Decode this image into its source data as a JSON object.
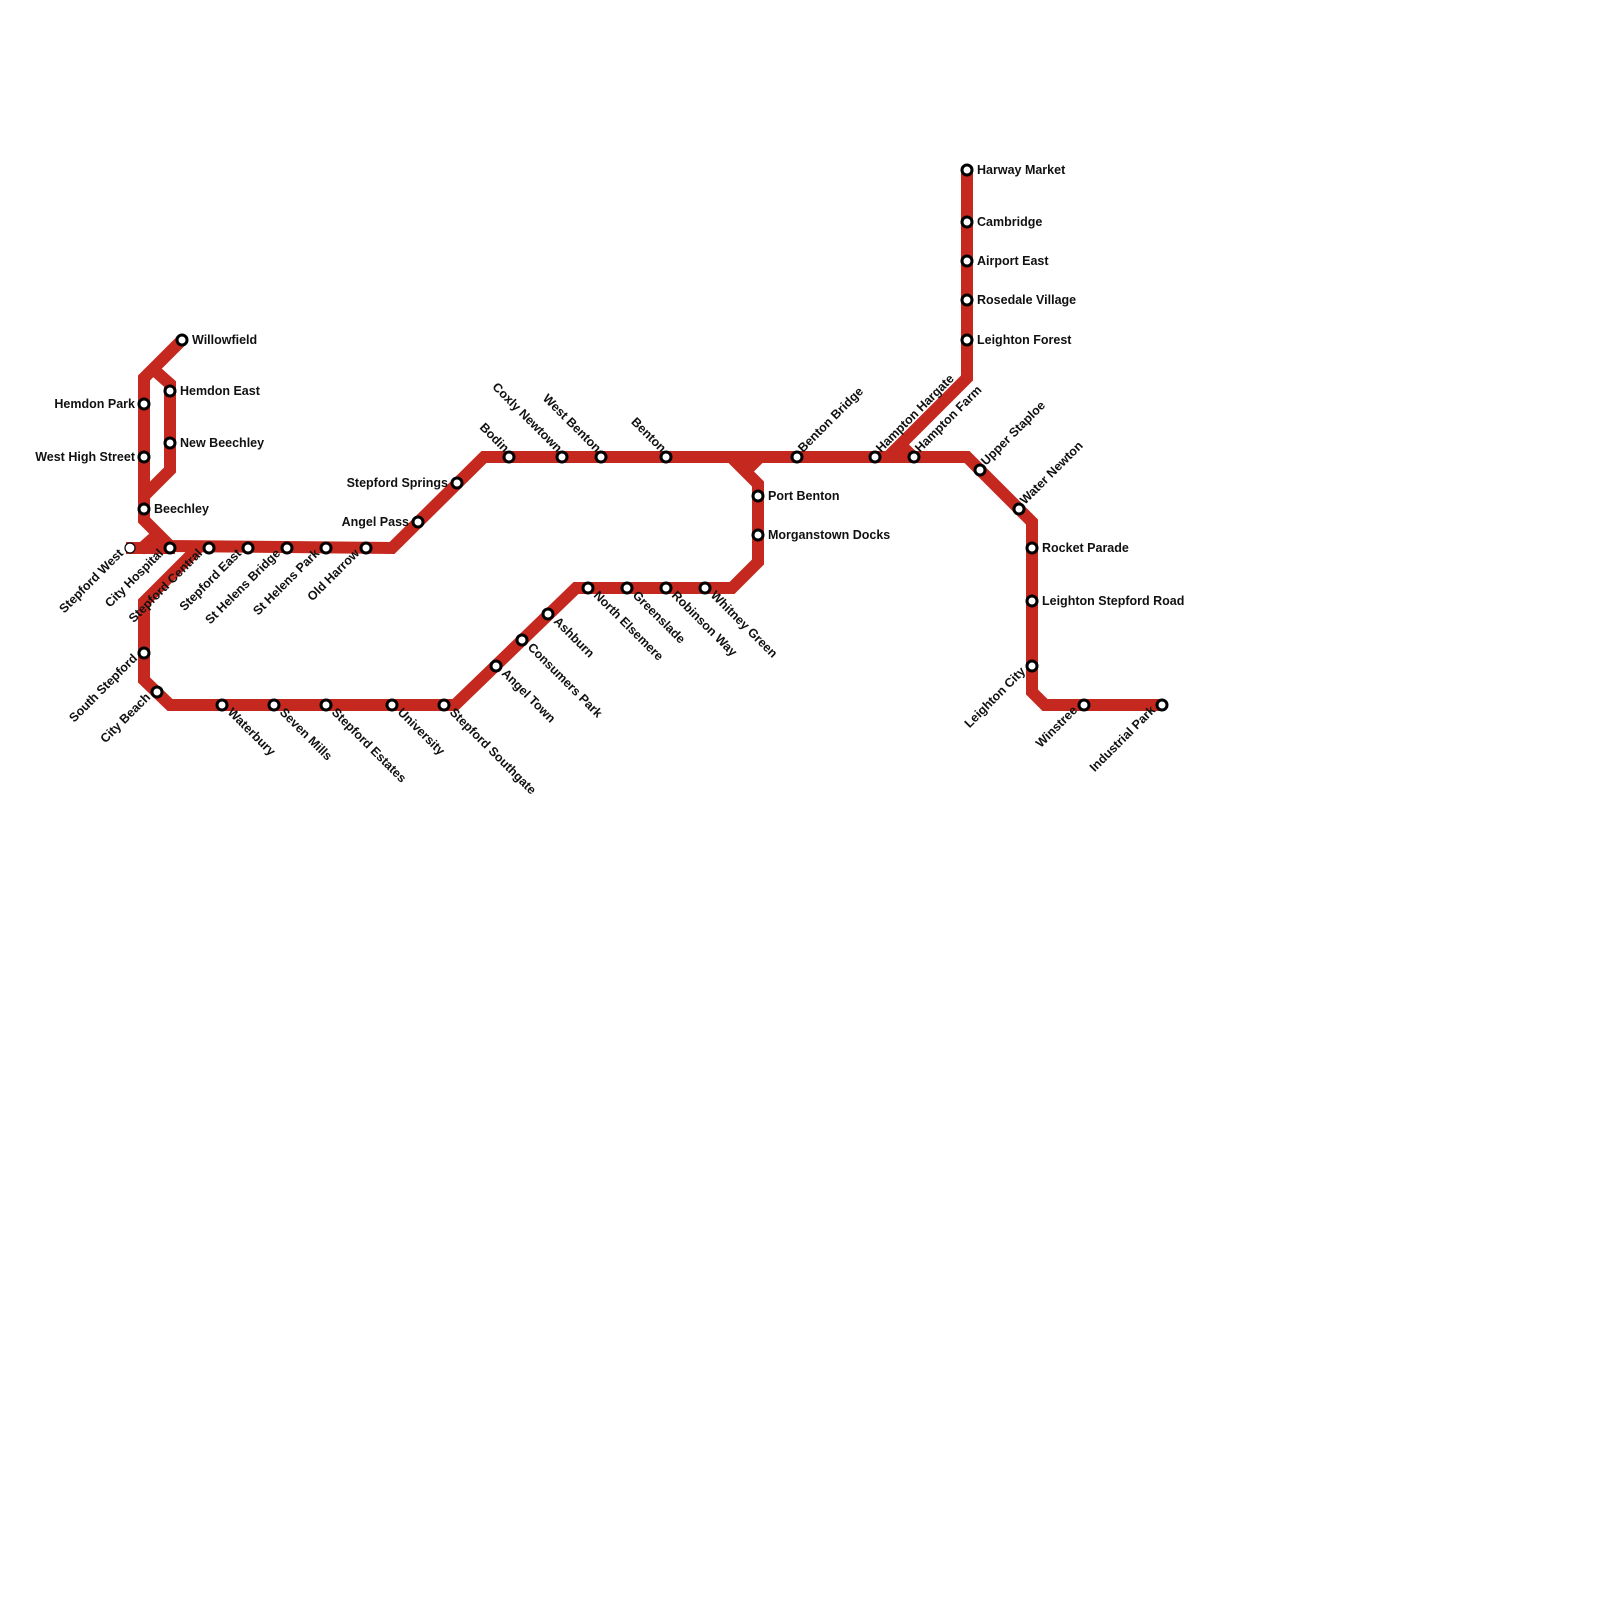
{
  "line_color": "#c4281e",
  "stations": [
    "Willowfield",
    "Hemdon East",
    "New Beechley",
    "Hemdon Park",
    "West High Street",
    "Beechley",
    "Stepford West",
    "City Hospital",
    "Stepford Central",
    "Stepford East",
    "St Helens Bridge",
    "St Helens Park",
    "Old Harrow",
    "Angel Pass",
    "Stepford Springs",
    "Bodin",
    "Coxly Newtown",
    "West Benton",
    "Benton",
    "Benton Bridge",
    "Hampton Hargate",
    "Hampton Farm",
    "Upper Staploe",
    "Water Newton",
    "Port Benton",
    "Morganstown Docks",
    "Harway Market",
    "Cambridge",
    "Airport East",
    "Rosedale Village",
    "Leighton Forest",
    "Rocket Parade",
    "Leighton Stepford Road",
    "Leighton City",
    "Winstree",
    "Industrial Park",
    "South Stepford",
    "City Beach",
    "Waterbury",
    "Seven Mills",
    "Stepford Estates",
    "University",
    "Stepford Southgate",
    "Angel Town",
    "Consumers Park",
    "Ashburn",
    "North Elsemere",
    "Greenslade",
    "Robinson Way",
    "Whitney Green"
  ]
}
